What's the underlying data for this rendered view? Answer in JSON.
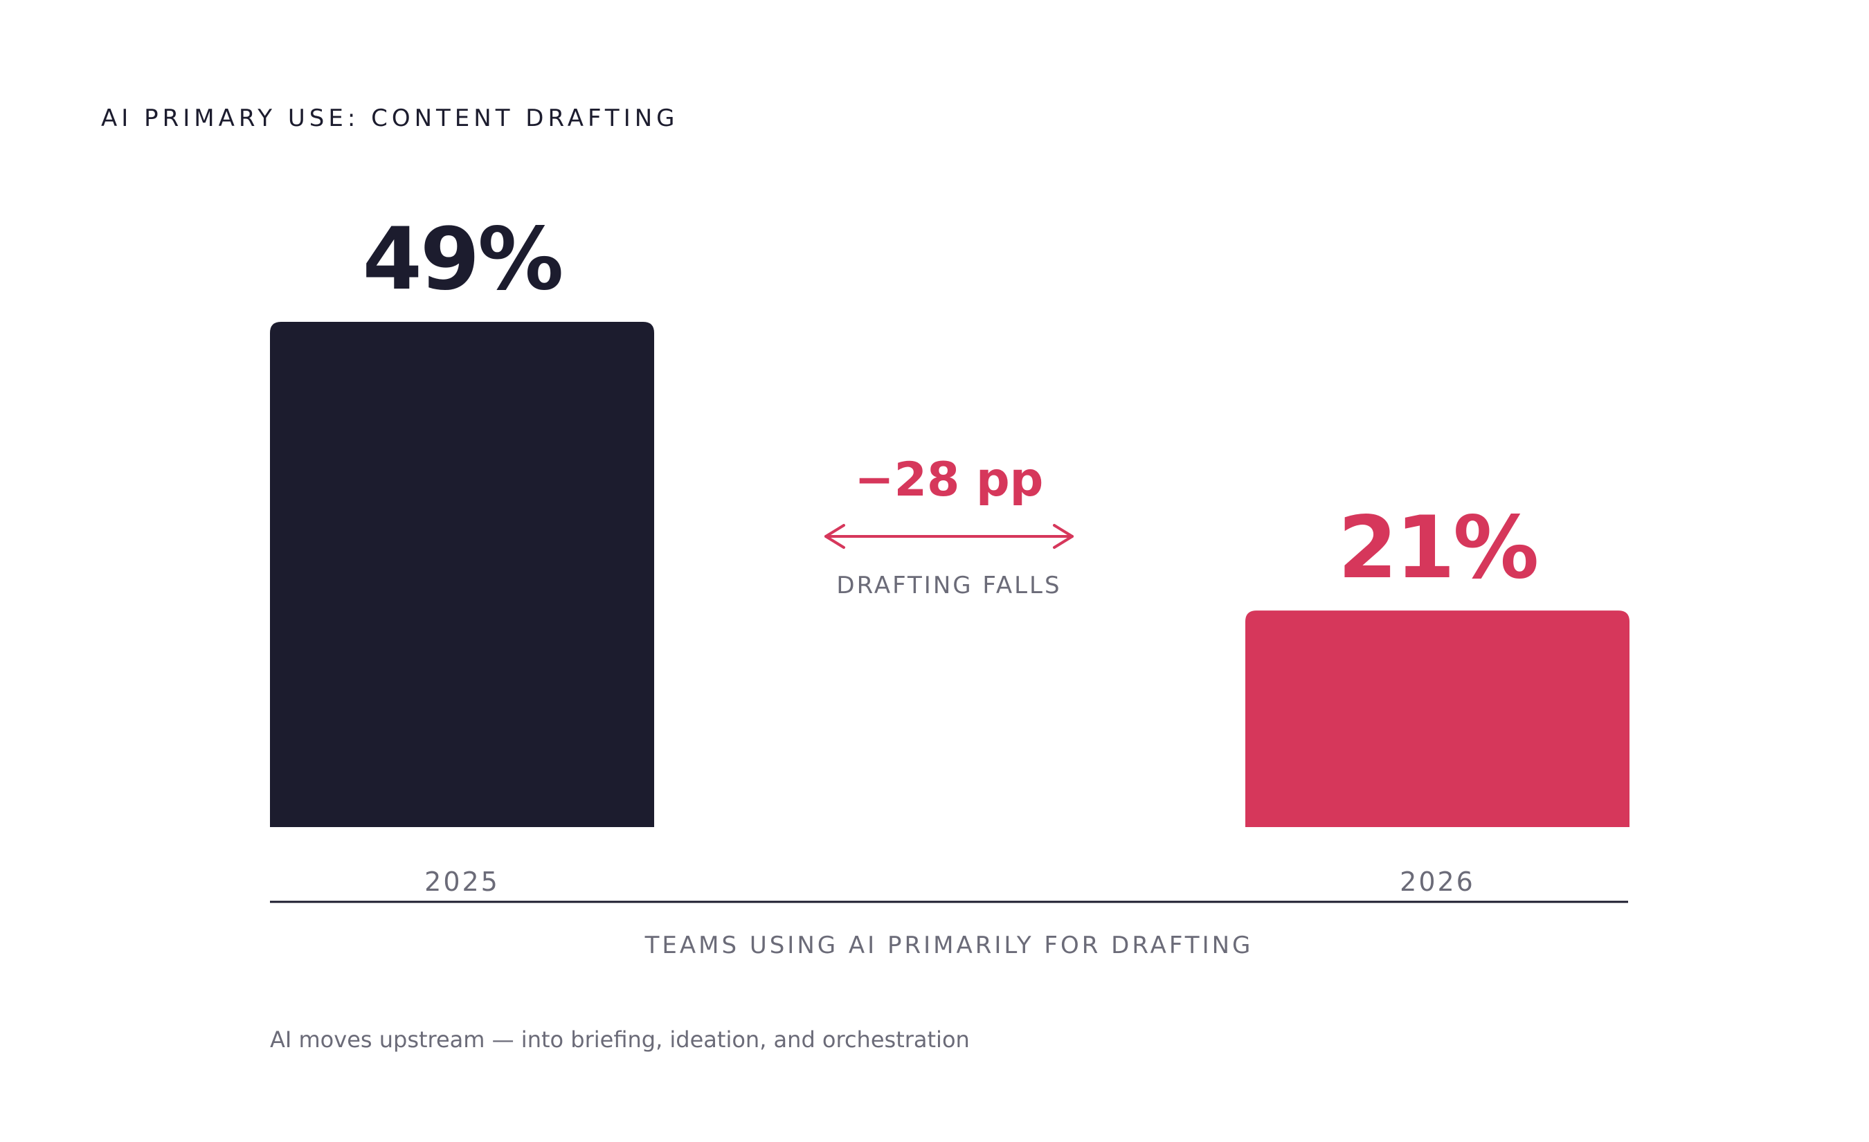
{
  "chart_data": {
    "type": "bar",
    "title": "AI PRIMARY USE: CONTENT DRAFTING",
    "categories": [
      "2025",
      "2026"
    ],
    "values": [
      49,
      21
    ],
    "value_labels": [
      "49%",
      "21%"
    ],
    "xlabel": "TEAMS USING AI PRIMARILY FOR DRAFTING",
    "ylabel": "",
    "ylim": [
      0,
      49
    ],
    "grid": false,
    "legend": "none",
    "bar_colors": [
      "#1c1c2e",
      "#d6375b"
    ],
    "value_label_colors": [
      "#1c1c2e",
      "#d6375b"
    ],
    "annotation": {
      "value": "−28 pp",
      "caption": "DRAFTING FALLS",
      "color": "#d6375b"
    },
    "footnote": "AI moves upstream — into briefing, ideation, and orchestration"
  }
}
